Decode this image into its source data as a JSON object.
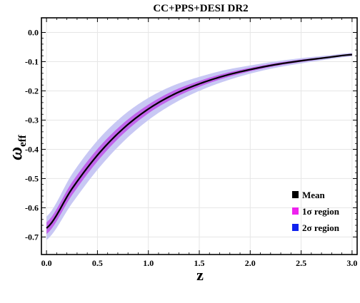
{
  "chart_data": {
    "type": "line",
    "title": "CC+PPS+DESI DR2",
    "xlabel": "z",
    "ylabel_main": "ω",
    "ylabel_sub": "eff",
    "xlim": [
      -0.05,
      3.05
    ],
    "ylim": [
      -0.76,
      0.05
    ],
    "xticks": [
      0.0,
      0.5,
      1.0,
      1.5,
      2.0,
      2.5,
      3.0
    ],
    "xtick_labels": [
      "0.0",
      "0.5",
      "1.0",
      "1.5",
      "2.0",
      "2.5",
      "3.0"
    ],
    "yticks": [
      0.0,
      -0.1,
      -0.2,
      -0.3,
      -0.4,
      -0.5,
      -0.6,
      -0.7
    ],
    "ytick_labels": [
      "0.0",
      "-0.1",
      "-0.2",
      "-0.3",
      "-0.4",
      "-0.5",
      "-0.6",
      "-0.7"
    ],
    "grid": true,
    "legend_position": "bottom-right",
    "x": [
      0.0,
      0.25,
      0.5,
      0.75,
      1.0,
      1.25,
      1.5,
      1.75,
      2.0,
      2.25,
      2.5,
      2.75,
      3.0
    ],
    "series": [
      {
        "name": "Mean",
        "color": "#000000",
        "values": [
          -0.67,
          -0.535,
          -0.42,
          -0.33,
          -0.262,
          -0.212,
          -0.176,
          -0.148,
          -0.127,
          -0.11,
          -0.097,
          -0.086,
          -0.076
        ]
      },
      {
        "name": "1σ region",
        "color": "#ee22ee",
        "lower": [
          -0.69,
          -0.557,
          -0.441,
          -0.348,
          -0.277,
          -0.225,
          -0.186,
          -0.156,
          -0.133,
          -0.115,
          -0.101,
          -0.089,
          -0.079
        ],
        "upper": [
          -0.65,
          -0.513,
          -0.399,
          -0.312,
          -0.247,
          -0.199,
          -0.166,
          -0.14,
          -0.121,
          -0.105,
          -0.093,
          -0.083,
          -0.073
        ]
      },
      {
        "name": "2σ region",
        "color": "#1122ee",
        "lower": [
          -0.71,
          -0.585,
          -0.47,
          -0.375,
          -0.3,
          -0.243,
          -0.2,
          -0.167,
          -0.141,
          -0.121,
          -0.106,
          -0.093,
          -0.082
        ],
        "upper": [
          -0.63,
          -0.485,
          -0.37,
          -0.285,
          -0.224,
          -0.181,
          -0.152,
          -0.129,
          -0.113,
          -0.099,
          -0.088,
          -0.079,
          -0.07
        ]
      }
    ],
    "band_fill_colors": {
      "one_sigma": "#c064ea",
      "two_sigma": "#c8c8f4"
    }
  }
}
